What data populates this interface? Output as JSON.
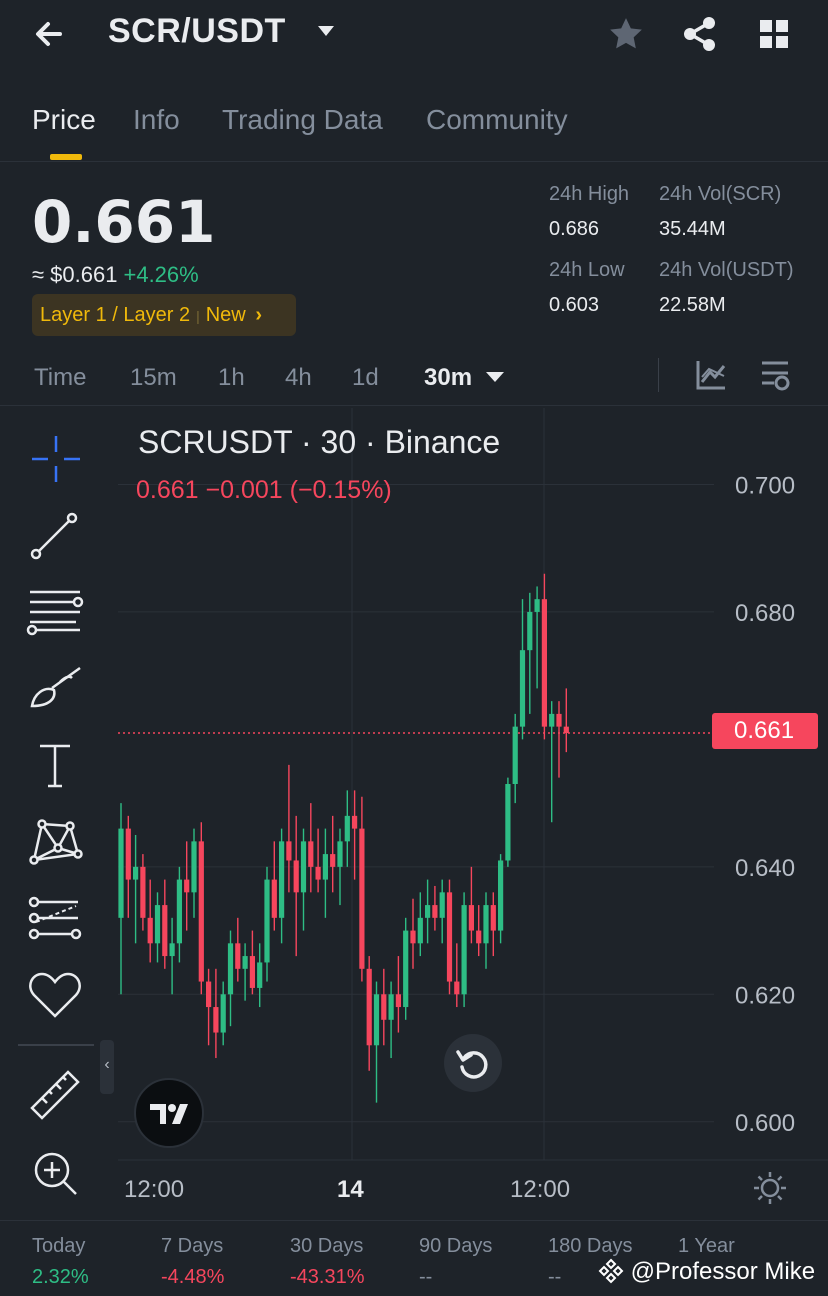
{
  "header": {
    "pair": "SCR/USDT"
  },
  "tabs": [
    {
      "label": "Price"
    },
    {
      "label": "Info"
    },
    {
      "label": "Trading Data"
    },
    {
      "label": "Community"
    }
  ],
  "ticker": {
    "last_price": "0.661",
    "usd_price": "≈ $0.661",
    "change_pct": "+4.26%",
    "tag_category": "Layer 1 / Layer 2",
    "tag_new": "New",
    "tag_arrow": "›"
  },
  "stats": {
    "high_label": "24h High",
    "high_value": "0.686",
    "low_label": "24h Low",
    "low_value": "0.603",
    "vol_base_label": "24h Vol(SCR)",
    "vol_base_value": "35.44M",
    "vol_quote_label": "24h Vol(USDT)",
    "vol_quote_value": "22.58M"
  },
  "timeframes": {
    "items": [
      "Time",
      "15m",
      "1h",
      "4h",
      "1d"
    ],
    "selected": "30m"
  },
  "chart": {
    "title": "SCRUSDT · 30 · Binance",
    "legend": "0.661  −0.001 (−0.15%)",
    "current_price_label": "0.661",
    "x_labels": [
      "12:00",
      "14",
      "12:00"
    ],
    "colors": {
      "up": "#2ebd85",
      "down": "#f6465d",
      "grid": "#2b3139"
    }
  },
  "chart_data": {
    "type": "candlestick",
    "title": "SCRUSDT · 30 · Binance",
    "xlabel": "",
    "ylabel": "",
    "ylim": [
      0.594,
      0.712
    ],
    "y_ticks": [
      0.6,
      0.62,
      0.64,
      0.68,
      0.7
    ],
    "x_tick_labels": [
      "12:00",
      "14",
      "12:00"
    ],
    "current_price": 0.661,
    "candles": [
      {
        "o": 0.632,
        "h": 0.65,
        "l": 0.62,
        "c": 0.646
      },
      {
        "o": 0.646,
        "h": 0.648,
        "l": 0.632,
        "c": 0.638
      },
      {
        "o": 0.638,
        "h": 0.645,
        "l": 0.628,
        "c": 0.64
      },
      {
        "o": 0.64,
        "h": 0.642,
        "l": 0.63,
        "c": 0.632
      },
      {
        "o": 0.632,
        "h": 0.638,
        "l": 0.625,
        "c": 0.628
      },
      {
        "o": 0.628,
        "h": 0.636,
        "l": 0.625,
        "c": 0.634
      },
      {
        "o": 0.634,
        "h": 0.638,
        "l": 0.624,
        "c": 0.626
      },
      {
        "o": 0.626,
        "h": 0.632,
        "l": 0.62,
        "c": 0.628
      },
      {
        "o": 0.628,
        "h": 0.64,
        "l": 0.625,
        "c": 0.638
      },
      {
        "o": 0.638,
        "h": 0.644,
        "l": 0.63,
        "c": 0.636
      },
      {
        "o": 0.636,
        "h": 0.646,
        "l": 0.632,
        "c": 0.644
      },
      {
        "o": 0.644,
        "h": 0.647,
        "l": 0.62,
        "c": 0.622
      },
      {
        "o": 0.622,
        "h": 0.624,
        "l": 0.612,
        "c": 0.618
      },
      {
        "o": 0.618,
        "h": 0.624,
        "l": 0.61,
        "c": 0.614
      },
      {
        "o": 0.614,
        "h": 0.622,
        "l": 0.612,
        "c": 0.62
      },
      {
        "o": 0.62,
        "h": 0.63,
        "l": 0.615,
        "c": 0.628
      },
      {
        "o": 0.628,
        "h": 0.632,
        "l": 0.622,
        "c": 0.624
      },
      {
        "o": 0.624,
        "h": 0.628,
        "l": 0.619,
        "c": 0.626
      },
      {
        "o": 0.626,
        "h": 0.63,
        "l": 0.62,
        "c": 0.621
      },
      {
        "o": 0.621,
        "h": 0.628,
        "l": 0.618,
        "c": 0.625
      },
      {
        "o": 0.625,
        "h": 0.64,
        "l": 0.622,
        "c": 0.638
      },
      {
        "o": 0.638,
        "h": 0.644,
        "l": 0.63,
        "c": 0.632
      },
      {
        "o": 0.632,
        "h": 0.646,
        "l": 0.628,
        "c": 0.644
      },
      {
        "o": 0.644,
        "h": 0.656,
        "l": 0.636,
        "c": 0.641
      },
      {
        "o": 0.641,
        "h": 0.648,
        "l": 0.626,
        "c": 0.636
      },
      {
        "o": 0.636,
        "h": 0.646,
        "l": 0.63,
        "c": 0.644
      },
      {
        "o": 0.644,
        "h": 0.65,
        "l": 0.636,
        "c": 0.64
      },
      {
        "o": 0.64,
        "h": 0.646,
        "l": 0.636,
        "c": 0.638
      },
      {
        "o": 0.638,
        "h": 0.646,
        "l": 0.632,
        "c": 0.642
      },
      {
        "o": 0.642,
        "h": 0.648,
        "l": 0.636,
        "c": 0.64
      },
      {
        "o": 0.64,
        "h": 0.646,
        "l": 0.634,
        "c": 0.644
      },
      {
        "o": 0.644,
        "h": 0.652,
        "l": 0.64,
        "c": 0.648
      },
      {
        "o": 0.648,
        "h": 0.652,
        "l": 0.638,
        "c": 0.646
      },
      {
        "o": 0.646,
        "h": 0.651,
        "l": 0.622,
        "c": 0.624
      },
      {
        "o": 0.624,
        "h": 0.626,
        "l": 0.608,
        "c": 0.612
      },
      {
        "o": 0.612,
        "h": 0.622,
        "l": 0.603,
        "c": 0.62
      },
      {
        "o": 0.62,
        "h": 0.624,
        "l": 0.612,
        "c": 0.616
      },
      {
        "o": 0.616,
        "h": 0.622,
        "l": 0.61,
        "c": 0.62
      },
      {
        "o": 0.62,
        "h": 0.626,
        "l": 0.614,
        "c": 0.618
      },
      {
        "o": 0.618,
        "h": 0.632,
        "l": 0.616,
        "c": 0.63
      },
      {
        "o": 0.63,
        "h": 0.635,
        "l": 0.624,
        "c": 0.628
      },
      {
        "o": 0.628,
        "h": 0.636,
        "l": 0.626,
        "c": 0.632
      },
      {
        "o": 0.632,
        "h": 0.638,
        "l": 0.628,
        "c": 0.634
      },
      {
        "o": 0.634,
        "h": 0.637,
        "l": 0.63,
        "c": 0.632
      },
      {
        "o": 0.632,
        "h": 0.638,
        "l": 0.628,
        "c": 0.636
      },
      {
        "o": 0.636,
        "h": 0.638,
        "l": 0.62,
        "c": 0.622
      },
      {
        "o": 0.622,
        "h": 0.628,
        "l": 0.618,
        "c": 0.62
      },
      {
        "o": 0.62,
        "h": 0.636,
        "l": 0.618,
        "c": 0.634
      },
      {
        "o": 0.634,
        "h": 0.64,
        "l": 0.628,
        "c": 0.63
      },
      {
        "o": 0.63,
        "h": 0.634,
        "l": 0.626,
        "c": 0.628
      },
      {
        "o": 0.628,
        "h": 0.636,
        "l": 0.624,
        "c": 0.634
      },
      {
        "o": 0.634,
        "h": 0.636,
        "l": 0.626,
        "c": 0.63
      },
      {
        "o": 0.63,
        "h": 0.642,
        "l": 0.628,
        "c": 0.641
      },
      {
        "o": 0.641,
        "h": 0.654,
        "l": 0.64,
        "c": 0.653
      },
      {
        "o": 0.653,
        "h": 0.664,
        "l": 0.65,
        "c": 0.662
      },
      {
        "o": 0.662,
        "h": 0.682,
        "l": 0.66,
        "c": 0.674
      },
      {
        "o": 0.674,
        "h": 0.683,
        "l": 0.664,
        "c": 0.68
      },
      {
        "o": 0.68,
        "h": 0.684,
        "l": 0.668,
        "c": 0.682
      },
      {
        "o": 0.682,
        "h": 0.686,
        "l": 0.66,
        "c": 0.662
      },
      {
        "o": 0.662,
        "h": 0.666,
        "l": 0.647,
        "c": 0.664
      },
      {
        "o": 0.664,
        "h": 0.666,
        "l": 0.654,
        "c": 0.662
      },
      {
        "o": 0.662,
        "h": 0.668,
        "l": 0.658,
        "c": 0.661
      }
    ]
  },
  "performance": [
    {
      "label": "Today",
      "value": "2.32%",
      "color": "#2ebd85"
    },
    {
      "label": "7 Days",
      "value": "-4.48%",
      "color": "#f6465d"
    },
    {
      "label": "30 Days",
      "value": "-43.31%",
      "color": "#f6465d"
    },
    {
      "label": "90 Days",
      "value": "--",
      "color": "#848e9c"
    },
    {
      "label": "180 Days",
      "value": "--",
      "color": "#848e9c"
    },
    {
      "label": "1 Year",
      "value": "",
      "color": "#848e9c"
    }
  ],
  "watermark": "@Professor Mike"
}
